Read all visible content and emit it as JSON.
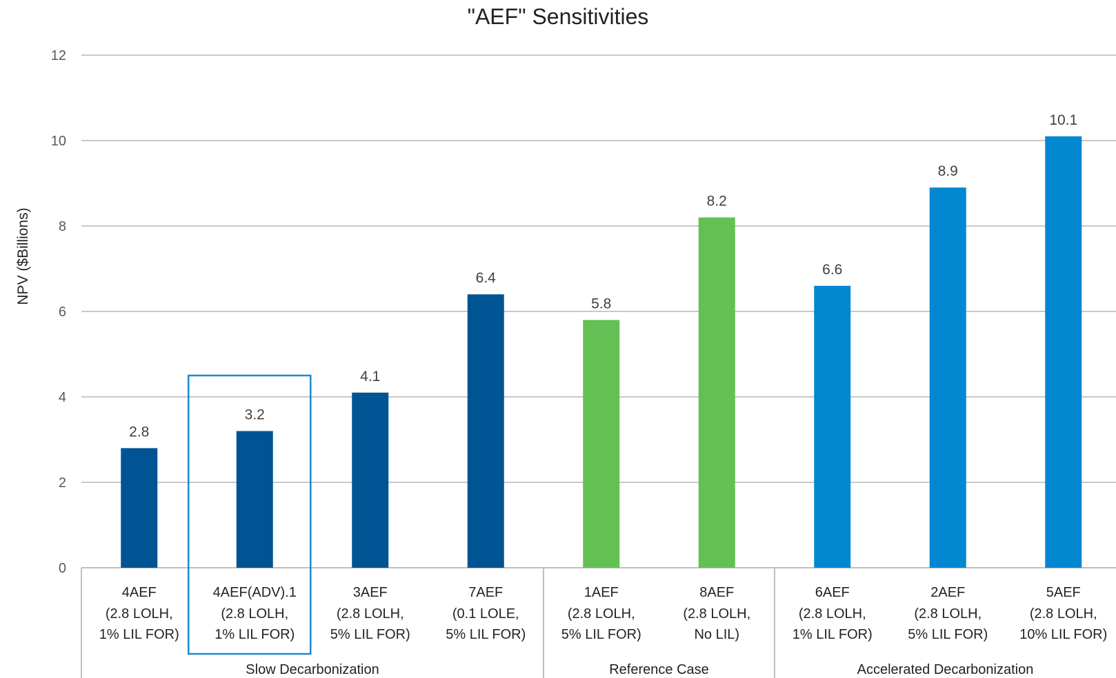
{
  "chart_data": {
    "type": "bar",
    "title": "\"AEF\" Sensitivities",
    "xlabel": "",
    "ylabel": "NPV ($Billions)",
    "ylim": [
      0,
      12
    ],
    "yticks": [
      0,
      2,
      4,
      6,
      8,
      10,
      12
    ],
    "grid": true,
    "legend": "none",
    "categories": [
      {
        "name": "4AEF",
        "params": [
          "(2.8 LOLH,",
          "1% LIL FOR)"
        ],
        "group": "Slow Decarbonization",
        "value": 2.8,
        "color": "#005494",
        "highlighted": false
      },
      {
        "name": "4AEF(ADV).1",
        "params": [
          "(2.8 LOLH,",
          "1% LIL FOR)"
        ],
        "group": "Slow Decarbonization",
        "value": 3.2,
        "color": "#005494",
        "highlighted": true
      },
      {
        "name": "3AEF",
        "params": [
          "(2.8 LOLH,",
          "5% LIL FOR)"
        ],
        "group": "Slow Decarbonization",
        "value": 4.1,
        "color": "#005494",
        "highlighted": false
      },
      {
        "name": "7AEF",
        "params": [
          "(0.1 LOLE,",
          "5% LIL FOR)"
        ],
        "group": "Slow Decarbonization",
        "value": 6.4,
        "color": "#005494",
        "highlighted": false
      },
      {
        "name": "1AEF",
        "params": [
          "(2.8 LOLH,",
          "5% LIL FOR)"
        ],
        "group": "Reference Case",
        "value": 5.8,
        "color": "#62C152",
        "highlighted": false
      },
      {
        "name": "8AEF",
        "params": [
          "(2.8 LOLH,",
          "No LIL)"
        ],
        "group": "Reference Case",
        "value": 8.2,
        "color": "#62C152",
        "highlighted": false
      },
      {
        "name": "6AEF",
        "params": [
          "(2.8 LOLH,",
          "1% LIL FOR)"
        ],
        "group": "Accelerated Decarbonization",
        "value": 6.6,
        "color": "#0288D1",
        "highlighted": false
      },
      {
        "name": "2AEF",
        "params": [
          "(2.8 LOLH,",
          "5% LIL FOR)"
        ],
        "group": "Accelerated Decarbonization",
        "value": 8.9,
        "color": "#0288D1",
        "highlighted": false
      },
      {
        "name": "5AEF",
        "params": [
          "(2.8 LOLH,",
          "10% LIL FOR)"
        ],
        "group": "Accelerated Decarbonization",
        "value": 10.1,
        "color": "#0288D1",
        "highlighted": false
      }
    ],
    "groups": [
      "Slow Decarbonization",
      "Reference Case",
      "Accelerated Decarbonization"
    ],
    "highlight_color": "#1B8AD0"
  }
}
